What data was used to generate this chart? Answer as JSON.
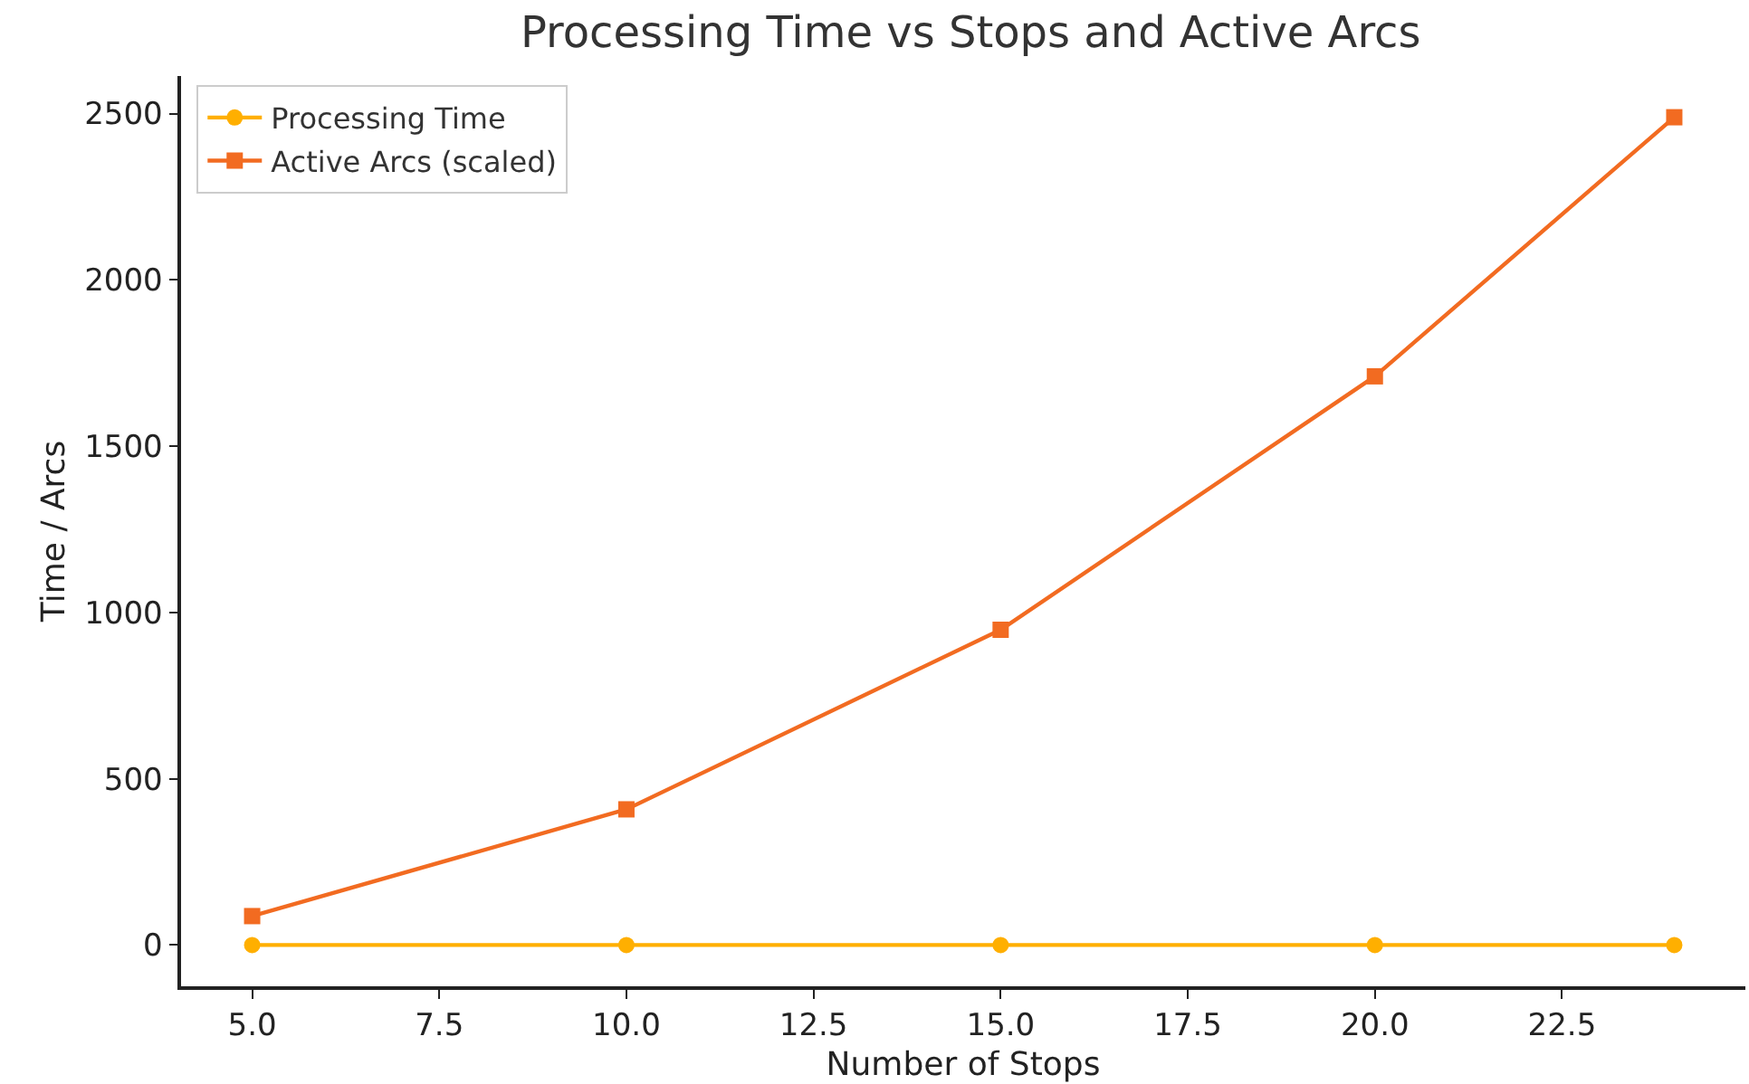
{
  "chart_data": {
    "type": "line",
    "title": "Processing Time vs Stops and Active Arcs",
    "xlabel": "Number of Stops",
    "ylabel": "Time / Arcs",
    "x": [
      5,
      10,
      15,
      20,
      24
    ],
    "series": [
      {
        "name": "Processing Time",
        "color": "#ffaf00",
        "values": [
          0,
          0,
          0,
          0,
          0
        ],
        "marker": "circle"
      },
      {
        "name": "Active Arcs (scaled)",
        "color": "#f26b21",
        "values": [
          87,
          408,
          948,
          1710,
          2489
        ],
        "marker": "square"
      }
    ],
    "xlim": [
      4.05,
      24.95
    ],
    "xticks": [
      {
        "value": 5,
        "label": "5.0"
      },
      {
        "value": 7.5,
        "label": "7.5"
      },
      {
        "value": 10,
        "label": "10.0"
      },
      {
        "value": 12.5,
        "label": "12.5"
      },
      {
        "value": 15,
        "label": "15.0"
      },
      {
        "value": 17.5,
        "label": "17.5"
      },
      {
        "value": 20,
        "label": "20.0"
      },
      {
        "value": 22.5,
        "label": "22.5"
      }
    ],
    "ylim": [
      -124,
      2613
    ],
    "yticks": [
      0,
      500,
      1000,
      1500,
      2000,
      2500
    ],
    "grid": false,
    "legend": "top left",
    "line_style": "solid"
  }
}
